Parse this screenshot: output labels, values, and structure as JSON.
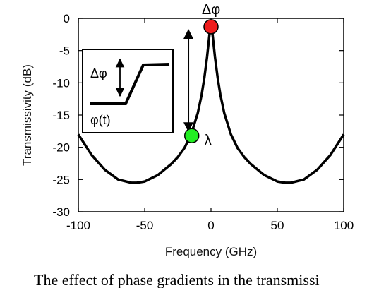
{
  "chart_data": {
    "type": "line",
    "xlabel": "Frequency (GHz)",
    "ylabel": "Transmissivity (dB)",
    "xlim": [
      -100,
      100
    ],
    "ylim": [
      -30,
      0
    ],
    "xticks": [
      -100,
      -50,
      0,
      50,
      100
    ],
    "xtick_labels": [
      "-100",
      "-50",
      "0",
      "50",
      "100"
    ],
    "yticks": [
      0,
      -5,
      -10,
      -15,
      -20,
      -25,
      -30
    ],
    "ytick_labels": [
      "0",
      "-5",
      "-10",
      "-15",
      "-20",
      "-25",
      "-30"
    ],
    "grid": false,
    "series": [
      {
        "x": [
          -100,
          -90,
          -80,
          -70,
          -60,
          -56,
          -50,
          -40,
          -30,
          -25,
          -20,
          -15,
          -10,
          -7,
          -5,
          -3,
          -1,
          0,
          1,
          3,
          5,
          7,
          10,
          15,
          20,
          25,
          30,
          40,
          50,
          56,
          60,
          70,
          80,
          90,
          100
        ],
        "y": [
          -18,
          -21.2,
          -23.5,
          -25,
          -25.5,
          -25.5,
          -25.3,
          -24.3,
          -22.6,
          -21.5,
          -20.1,
          -18,
          -14.7,
          -11.8,
          -9.2,
          -6,
          -2.2,
          -0.7,
          -2.2,
          -6,
          -9.2,
          -11.8,
          -14.7,
          -18,
          -20.1,
          -21.5,
          -22.6,
          -24.3,
          -25.3,
          -25.5,
          -25.5,
          -25,
          -23.5,
          -21.2,
          -18
        ],
        "color": "#000000"
      }
    ],
    "markers": [
      {
        "x": 0,
        "y": -1.3,
        "color": "#ee1c1c",
        "label": "Δφ"
      },
      {
        "x": -14.5,
        "y": -18.2,
        "color": "#22ee22",
        "label": "λ"
      }
    ],
    "arrow": {
      "x": -17,
      "y_from": -1.8,
      "y_to": -17.5
    },
    "inset": {
      "delta_label": "Δφ",
      "signal_label": "φ(t)"
    }
  },
  "caption": "The effect of phase gradients in the transmissi"
}
